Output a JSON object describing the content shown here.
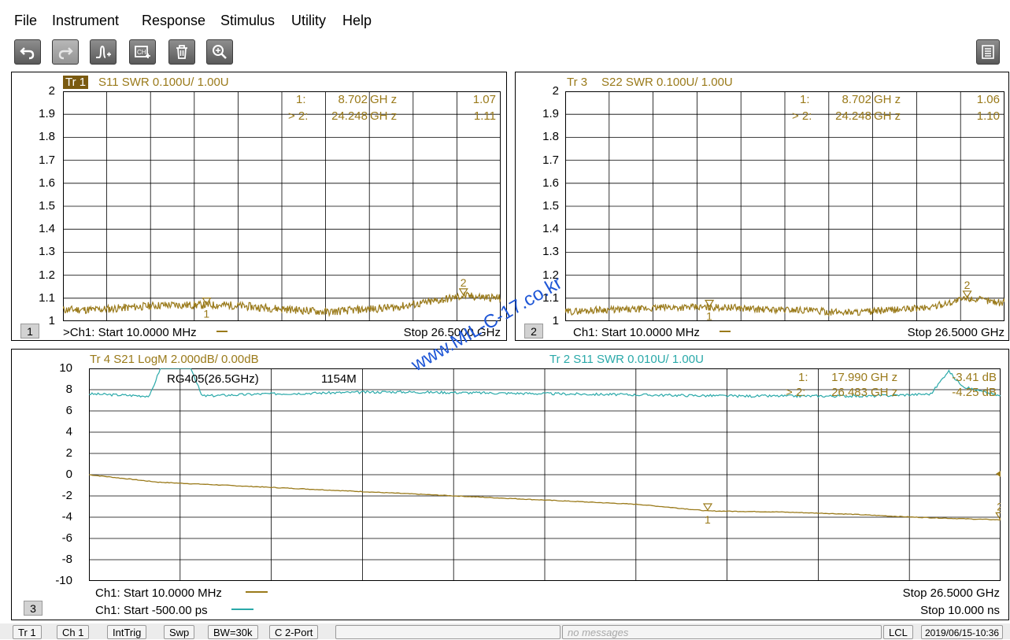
{
  "menu": {
    "items": [
      "File",
      "Instrument",
      "Response",
      "Stimulus",
      "Utility",
      "Help"
    ]
  },
  "toolbar": {
    "buttons": [
      {
        "name": "undo-icon",
        "disabled": false
      },
      {
        "name": "redo-icon",
        "disabled": true
      },
      {
        "name": "add-trace-icon",
        "disabled": false
      },
      {
        "name": "add-channel-icon",
        "disabled": false
      },
      {
        "name": "trash-icon",
        "disabled": false
      },
      {
        "name": "zoom-icon",
        "disabled": false
      }
    ],
    "right_icon": "keypad-icon"
  },
  "colors": {
    "gold": "#9a7a1a",
    "teal": "#2aa9a9",
    "tr1_highlight": "#7a5a10",
    "watermark": "#1e56d6"
  },
  "panels": {
    "p1": {
      "label": "1",
      "trace_tag": "Tr 1",
      "trace_desc": "S11 SWR 0.100U/  1.00U",
      "marker1_label": "1:",
      "marker1_freq": "8.702",
      "marker1_unit": "GH z",
      "marker1_val": "1.07",
      "marker2_label": "> 2:",
      "marker2_freq": "24.248",
      "marker2_unit": "GH z",
      "marker2_val": "1.11",
      "foot_start": ">Ch1:  Start  10.0000 MHz",
      "foot_stop": "Stop  26.5000 GHz"
    },
    "p2": {
      "label": "2",
      "trace_tag": "Tr 3",
      "trace_desc": "S22 SWR 0.100U/  1.00U",
      "marker1_label": "1:",
      "marker1_freq": "8.702",
      "marker1_unit": "GH z",
      "marker1_val": "1.06",
      "marker2_label": "> 2:",
      "marker2_freq": "24.248",
      "marker2_unit": "GH z",
      "marker2_val": "1.10",
      "foot_start": "Ch1:  Start  10.0000 MHz",
      "foot_stop": "Stop  26.5000 GHz"
    },
    "p3": {
      "label": "3",
      "trace4_desc": "Tr 4  S21 LogM 2.000dB/  0.00dB",
      "trace2_desc": "Tr 2  S11 SWR 0.010U/  1.00U",
      "cable_label": "RG405(26.5GHz)",
      "length_label": "1154M",
      "marker1_label": "1:",
      "marker1_freq": "17.990",
      "marker1_unit": "GH z",
      "marker1_val": "-3.41 dB",
      "marker2_label": "> 2:",
      "marker2_freq": "26.483",
      "marker2_unit": "GH z",
      "marker2_val": "-4.25 dB",
      "foot1_start": "Ch1:  Start  10.0000 MHz",
      "foot2_start": "Ch1:  Start  -500.00 ps",
      "foot1_stop": "Stop  26.5000 GHz",
      "foot2_stop": "Stop  10.000 ns"
    }
  },
  "status": {
    "items": [
      "Tr 1",
      "Ch 1",
      "IntTrig",
      "Swp",
      "BW=30k",
      "C  2-Port"
    ],
    "message": "no messages",
    "lcl": "LCL",
    "datetime": "2019/06/15-10:36"
  },
  "watermark": "www.MIL-C-17.co.kr",
  "chart_data": [
    {
      "type": "line",
      "title": "Tr 1  S11 SWR 0.100U/ 1.00U",
      "xlabel": "",
      "ylabel": "",
      "x_range": [
        0.01,
        26.5
      ],
      "ylim": [
        1.0,
        2.0
      ],
      "y_ticks": [
        "2",
        "1.9",
        "1.8",
        "1.7",
        "1.6",
        "1.5",
        "1.4",
        "1.3",
        "1.2",
        "1.1",
        "1"
      ],
      "grid": true,
      "series": [
        {
          "name": "Tr 1 S11 SWR",
          "color": "#9a7a1a",
          "x": [
            0.01,
            2,
            4,
            6,
            8.702,
            10,
            12,
            14,
            16,
            18,
            20,
            22,
            24.248,
            26.5
          ],
          "y": [
            1.05,
            1.05,
            1.06,
            1.07,
            1.07,
            1.07,
            1.06,
            1.05,
            1.04,
            1.05,
            1.06,
            1.08,
            1.11,
            1.1
          ]
        }
      ],
      "markers": [
        {
          "id": "1",
          "x": 8.702,
          "y": 1.07
        },
        {
          "id": "2",
          "x": 24.248,
          "y": 1.11
        }
      ]
    },
    {
      "type": "line",
      "title": "Tr 3  S22 SWR 0.100U/ 1.00U",
      "xlabel": "",
      "ylabel": "",
      "x_range": [
        0.01,
        26.5
      ],
      "ylim": [
        1.0,
        2.0
      ],
      "y_ticks": [
        "2",
        "1.9",
        "1.8",
        "1.7",
        "1.6",
        "1.5",
        "1.4",
        "1.3",
        "1.2",
        "1.1",
        "1"
      ],
      "grid": true,
      "series": [
        {
          "name": "Tr 3 S22 SWR",
          "color": "#9a7a1a",
          "x": [
            0.01,
            2,
            4,
            6,
            8.702,
            10,
            12,
            14,
            16,
            18,
            20,
            22,
            24.248,
            26.5
          ],
          "y": [
            1.04,
            1.05,
            1.05,
            1.06,
            1.06,
            1.06,
            1.05,
            1.05,
            1.04,
            1.04,
            1.05,
            1.06,
            1.1,
            1.08
          ]
        }
      ],
      "markers": [
        {
          "id": "1",
          "x": 8.702,
          "y": 1.06
        },
        {
          "id": "2",
          "x": 24.248,
          "y": 1.1
        }
      ]
    },
    {
      "type": "line",
      "title": "Tr 4  S21 LogM 2.000dB/ 0.00dB",
      "xlabel": "",
      "ylabel": "",
      "x_range": [
        0.01,
        26.5
      ],
      "ylim": [
        -10,
        10
      ],
      "y_ticks": [
        "10",
        "8",
        "6",
        "4",
        "2",
        "0",
        "-2",
        "-4",
        "-6",
        "-8",
        "-10"
      ],
      "grid": true,
      "series": [
        {
          "name": "Tr 4 S21 LogM",
          "color": "#9a7a1a",
          "x": [
            0.01,
            2,
            4,
            6,
            8,
            10,
            12,
            14,
            16,
            17.99,
            20,
            22,
            24,
            26.483
          ],
          "y": [
            0.0,
            -0.7,
            -1.0,
            -1.3,
            -1.6,
            -1.9,
            -2.2,
            -2.5,
            -2.8,
            -3.41,
            -3.5,
            -3.7,
            -4.0,
            -4.25
          ]
        }
      ],
      "markers": [
        {
          "id": "1",
          "x": 17.99,
          "y": -3.41
        },
        {
          "id": "2",
          "x": 26.483,
          "y": -4.25
        }
      ]
    },
    {
      "type": "line",
      "title": "Tr 2  S11 SWR 0.010U/ 1.00U",
      "xlabel": "",
      "ylabel": "",
      "x_range": [
        -0.5,
        10.0
      ],
      "grid": true,
      "series": [
        {
          "name": "Tr 2 S11 SWR (time domain)",
          "color": "#2aa9a9",
          "x": [
            -0.5,
            0.2,
            0.35,
            0.5,
            0.65,
            0.8,
            1.5,
            3,
            5,
            7,
            8.5,
            9.2,
            9.4,
            9.5,
            9.6,
            10.0
          ],
          "y": [
            1.088,
            1.087,
            1.103,
            1.148,
            1.103,
            1.087,
            1.088,
            1.089,
            1.088,
            1.087,
            1.087,
            1.088,
            1.099,
            1.094,
            1.091,
            1.087
          ]
        }
      ]
    }
  ]
}
